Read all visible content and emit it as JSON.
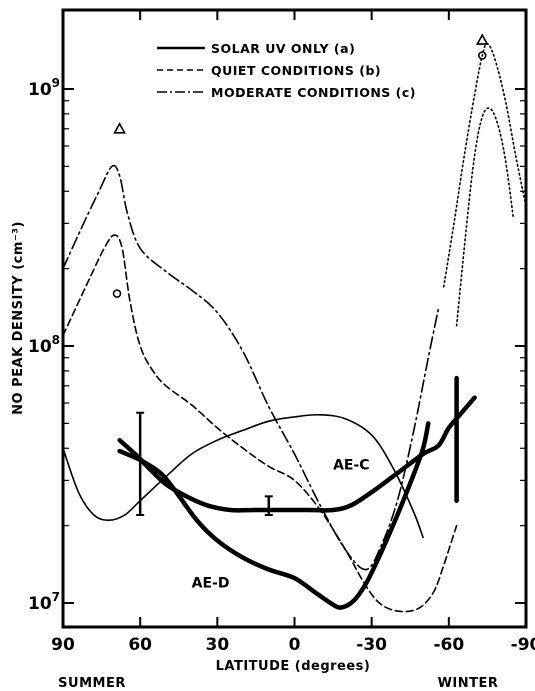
{
  "chart_data": {
    "type": "line",
    "xlabel": "LATITUDE (degrees)",
    "ylabel": "NO PEAK DENSITY (cm⁻³)",
    "y_scale": "log",
    "xlim": [
      90,
      -90
    ],
    "ylim": [
      8000000,
      1700000000
    ],
    "x_ticks": [
      90,
      60,
      30,
      0,
      -30,
      -60,
      -90
    ],
    "x_tick_labels": [
      "90",
      "60",
      "30",
      "0",
      "-30",
      "-60",
      "-90"
    ],
    "y_ticks": [
      10000000,
      100000000,
      1000000000
    ],
    "y_tick_labels": [
      {
        "base": "10",
        "exp": "7"
      },
      {
        "base": "10",
        "exp": "8"
      },
      {
        "base": "10",
        "exp": "9"
      }
    ],
    "hemisphere_labels": [
      {
        "text": "SUMMER",
        "x": 68
      },
      {
        "text": "WINTER",
        "x": -71
      }
    ],
    "legend": {
      "placement": "top-center",
      "entries": [
        {
          "label": "SOLAR UV ONLY (a)",
          "style": "solid"
        },
        {
          "label": "QUIET CONDITIONS (b)",
          "style": "dashed"
        },
        {
          "label": "MODERATE CONDITIONS (c)",
          "style": "dashdot"
        }
      ]
    },
    "series": [
      {
        "style": "solid",
        "width": "thin",
        "points": [
          [
            90,
            40000000
          ],
          [
            84,
            27000000
          ],
          [
            78,
            22000000
          ],
          [
            72,
            21000000
          ],
          [
            66,
            22000000
          ],
          [
            60,
            25000000
          ],
          [
            50,
            31000000
          ],
          [
            40,
            38000000
          ],
          [
            30,
            43000000
          ],
          [
            20,
            47000000
          ],
          [
            10,
            51000000
          ],
          [
            0,
            53000000
          ],
          [
            -10,
            54000000
          ],
          [
            -20,
            52000000
          ],
          [
            -30,
            45000000
          ],
          [
            -38,
            34000000
          ],
          [
            -46,
            23000000
          ],
          [
            -50,
            18000000
          ]
        ]
      },
      {
        "style": "dashed",
        "width": "thin",
        "points": [
          [
            90,
            110000000
          ],
          [
            80,
            180000000
          ],
          [
            74,
            240000000
          ],
          [
            70,
            270000000
          ],
          [
            67,
            240000000
          ],
          [
            64,
            150000000
          ],
          [
            60,
            100000000
          ],
          [
            55,
            80000000
          ],
          [
            50,
            70000000
          ],
          [
            40,
            59000000
          ],
          [
            30,
            48000000
          ],
          [
            20,
            40000000
          ],
          [
            10,
            34000000
          ],
          [
            0,
            30000000
          ],
          [
            -10,
            23000000
          ],
          [
            -20,
            16000000
          ],
          [
            -27,
            12000000
          ],
          [
            -33,
            10000000
          ],
          [
            -40,
            9300000
          ],
          [
            -48,
            9500000
          ],
          [
            -54,
            11000000
          ],
          [
            -58,
            14000000
          ],
          [
            -63,
            20000000
          ]
        ]
      },
      {
        "style": "dashdot",
        "width": "thin",
        "points": [
          [
            90,
            200000000
          ],
          [
            82,
            300000000
          ],
          [
            76,
            400000000
          ],
          [
            71,
            500000000
          ],
          [
            68,
            460000000
          ],
          [
            65,
            330000000
          ],
          [
            60,
            240000000
          ],
          [
            50,
            195000000
          ],
          [
            40,
            165000000
          ],
          [
            30,
            135000000
          ],
          [
            20,
            95000000
          ],
          [
            10,
            58000000
          ],
          [
            0,
            38000000
          ],
          [
            -10,
            24000000
          ],
          [
            -20,
            16000000
          ],
          [
            -28,
            13500000
          ],
          [
            -34,
            17000000
          ],
          [
            -40,
            25000000
          ],
          [
            -46,
            45000000
          ],
          [
            -52,
            90000000
          ],
          [
            -56,
            140000000
          ]
        ]
      },
      {
        "style": "dotted",
        "width": "thin",
        "points": [
          [
            -58,
            170000000
          ],
          [
            -62,
            300000000
          ],
          [
            -66,
            550000000
          ],
          [
            -70,
            950000000
          ],
          [
            -73,
            1350000000
          ],
          [
            -75,
            1500000000
          ],
          [
            -78,
            1300000000
          ],
          [
            -82,
            900000000
          ],
          [
            -86,
            550000000
          ],
          [
            -90,
            350000000
          ]
        ]
      },
      {
        "style": "dotted",
        "width": "thin",
        "points": [
          [
            -63,
            120000000
          ],
          [
            -67,
            300000000
          ],
          [
            -70,
            550000000
          ],
          [
            -73,
            780000000
          ],
          [
            -76,
            840000000
          ],
          [
            -79,
            730000000
          ],
          [
            -82,
            530000000
          ],
          [
            -85,
            320000000
          ]
        ]
      },
      {
        "style": "solid",
        "width": "thick",
        "label": "AE-C",
        "points": [
          [
            68,
            43000000
          ],
          [
            62,
            38000000
          ],
          [
            56,
            33000000
          ],
          [
            50,
            29000000
          ],
          [
            42,
            26000000
          ],
          [
            34,
            24000000
          ],
          [
            25,
            23000000
          ],
          [
            15,
            23000000
          ],
          [
            5,
            23000000
          ],
          [
            -5,
            23000000
          ],
          [
            -15,
            23000000
          ],
          [
            -22,
            24000000
          ],
          [
            -30,
            27000000
          ],
          [
            -40,
            32000000
          ],
          [
            -50,
            38000000
          ],
          [
            -56,
            41000000
          ],
          [
            -60,
            48000000
          ],
          [
            -65,
            55000000
          ],
          [
            -70,
            63000000
          ]
        ]
      },
      {
        "style": "solid",
        "width": "thick",
        "label": "AE-D",
        "points": [
          [
            68,
            39000000
          ],
          [
            60,
            36000000
          ],
          [
            52,
            32000000
          ],
          [
            46,
            27000000
          ],
          [
            38,
            21000000
          ],
          [
            30,
            17500000
          ],
          [
            20,
            15000000
          ],
          [
            10,
            13500000
          ],
          [
            0,
            12500000
          ],
          [
            -8,
            11000000
          ],
          [
            -14,
            10000000
          ],
          [
            -18,
            9600000
          ],
          [
            -23,
            10200000
          ],
          [
            -28,
            12000000
          ],
          [
            -34,
            16000000
          ],
          [
            -40,
            22000000
          ],
          [
            -46,
            31000000
          ],
          [
            -50,
            40000000
          ],
          [
            -52,
            50000000
          ]
        ]
      },
      {
        "style": "solid",
        "width": "thick",
        "points": [
          [
            -63,
            25000000
          ],
          [
            -63,
            75000000
          ]
        ]
      }
    ],
    "error_bars": [
      {
        "x": 60,
        "y": 37000000,
        "low": 22000000,
        "high": 55000000
      },
      {
        "x": 10,
        "y": 24000000,
        "low": 22000000,
        "high": 26000000
      }
    ],
    "markers": [
      {
        "symbol": "triangle",
        "x": 68,
        "y": 700000000
      },
      {
        "symbol": "circle",
        "x": 69,
        "y": 160000000
      },
      {
        "symbol": "triangle",
        "x": -73,
        "y": 1550000000
      },
      {
        "symbol": "circle",
        "x": -73,
        "y": 1350000000
      }
    ],
    "annotations": [
      {
        "text": "AE-C",
        "x": -15,
        "y": 33000000
      },
      {
        "text": "AE-D",
        "x": 40,
        "y": 11500000
      }
    ]
  }
}
